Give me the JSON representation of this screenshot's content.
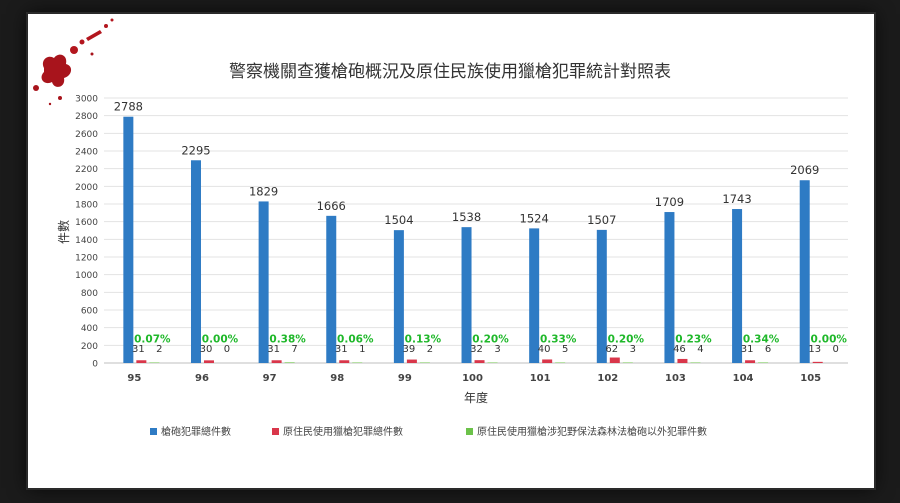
{
  "chart_data": {
    "type": "bar",
    "title": "警察機關查獲槍砲概況及原住民族使用獵槍犯罪統計對照表",
    "xlabel": "年度",
    "ylabel": "件數",
    "ylim": [
      0,
      3000
    ],
    "yticks": [
      0,
      200,
      400,
      600,
      800,
      1000,
      1200,
      1400,
      1600,
      1800,
      2000,
      2200,
      2400,
      2600,
      2800,
      3000
    ],
    "grid": true,
    "legend_position": "bottom",
    "categories": [
      "95",
      "96",
      "97",
      "98",
      "99",
      "100",
      "101",
      "102",
      "103",
      "104",
      "105"
    ],
    "series": [
      {
        "name": "槍砲犯罪總件數",
        "color": "#2e7bc4",
        "values": [
          2788,
          2295,
          1829,
          1666,
          1504,
          1538,
          1524,
          1507,
          1709,
          1743,
          2069
        ]
      },
      {
        "name": "原住民使用獵槍犯罪總件數",
        "color": "#d9364a",
        "values": [
          31,
          30,
          31,
          31,
          39,
          32,
          40,
          62,
          46,
          31,
          13
        ]
      },
      {
        "name": "原住民使用獵槍涉犯野保法森林法槍砲以外犯罪件數",
        "color": "#6cc24a",
        "values": [
          2,
          0,
          7,
          1,
          2,
          3,
          5,
          3,
          4,
          6,
          0
        ]
      }
    ],
    "percent_labels": [
      "0.07%",
      "0.00%",
      "0.38%",
      "0.06%",
      "0.13%",
      "0.20%",
      "0.33%",
      "0.20%",
      "0.23%",
      "0.34%",
      "0.00%"
    ],
    "percent_color": "#1fb82a"
  }
}
